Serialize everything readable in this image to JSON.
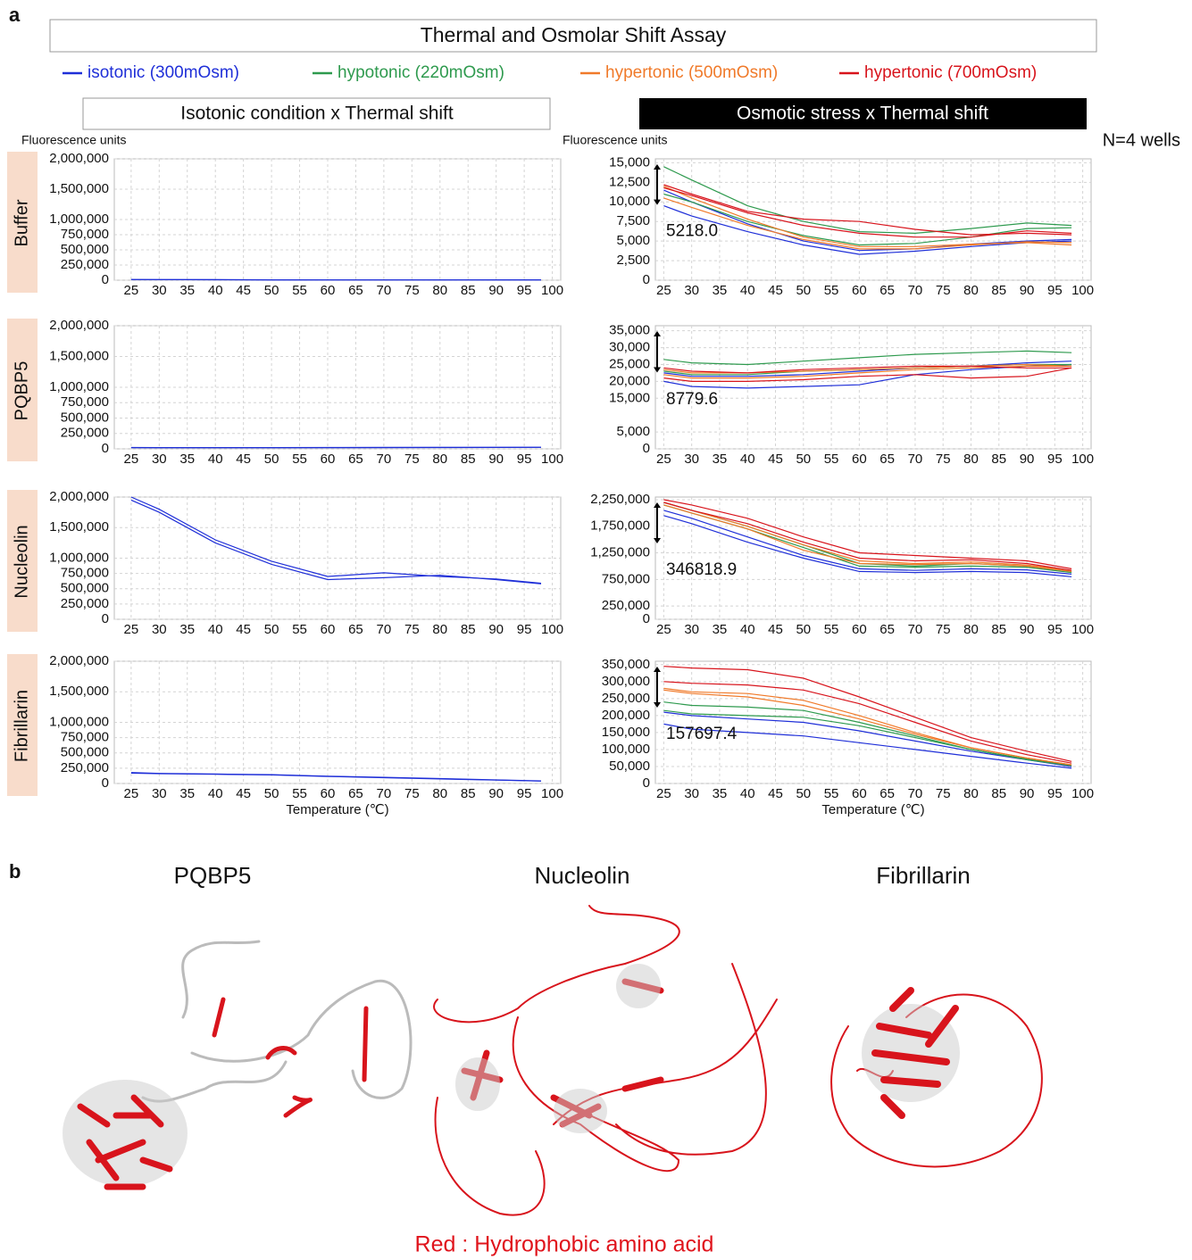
{
  "panel_a_label": "a",
  "panel_b_label": "b",
  "title": "Thermal and Osmolar Shift Assay",
  "legend": [
    {
      "name": "isotonic (300mOsm)",
      "color": "#1f2fd8"
    },
    {
      "name": "hypotonic (220mOsm)",
      "color": "#2e9a4e"
    },
    {
      "name": "hypertonic (500mOsm)",
      "color": "#f07a2a"
    },
    {
      "name": "hypertonic (700mOsm)",
      "color": "#d8141c"
    }
  ],
  "column_titles": [
    "Isotonic condition x Thermal shift",
    "Osmotic stress x Thermal shift"
  ],
  "note": "N=4 wells",
  "row_labels": [
    "Buffer",
    "PQBP5",
    "Nucleolin",
    "Fibrillarin"
  ],
  "chart_data": [
    {
      "type": "line",
      "ylabel": "Fluorescence units",
      "grid": true,
      "x": [
        25,
        30,
        40,
        50,
        60,
        70,
        80,
        90,
        98
      ],
      "xlim": [
        22,
        101.5
      ],
      "xticks": [
        25,
        30,
        35,
        40,
        45,
        50,
        55,
        60,
        65,
        70,
        75,
        80,
        85,
        90,
        95,
        100
      ],
      "ylim": [
        0,
        2000000
      ],
      "yticks": [
        0,
        {
          "value": 250000,
          "label": "250,000"
        },
        {
          "value": 500000,
          "label": "500,000"
        },
        {
          "value": 750000,
          "label": "750,000"
        },
        {
          "value": 1000000,
          "label": "1,000,000"
        },
        {
          "value": 1500000,
          "label": "1,500,000"
        },
        {
          "value": 2000000,
          "label": "2,000,000"
        }
      ],
      "series": [
        {
          "color": "#1f2fd8",
          "values": [
            11000,
            10000,
            8000,
            6000,
            4000,
            4000,
            4500,
            5000,
            5200
          ]
        },
        {
          "color": "#1f2fd8",
          "values": [
            12000,
            11000,
            9000,
            6500,
            4500,
            4500,
            5000,
            5500,
            5600
          ]
        }
      ]
    },
    {
      "type": "line",
      "ylabel": "Fluorescence units",
      "grid": true,
      "annotation": "5218.0",
      "x": [
        25,
        30,
        40,
        50,
        60,
        70,
        80,
        90,
        98
      ],
      "xlim": [
        23.5,
        101.5
      ],
      "xticks": [
        25,
        30,
        35,
        40,
        45,
        50,
        55,
        60,
        65,
        70,
        75,
        80,
        85,
        90,
        95,
        100
      ],
      "ylim": [
        0,
        15500
      ],
      "yticks": [
        0,
        {
          "value": 2500,
          "label": "2,500"
        },
        {
          "value": 5000,
          "label": "5,000"
        },
        {
          "value": 7500,
          "label": "7,500"
        },
        {
          "value": 10000,
          "label": "10,000"
        },
        {
          "value": 12500,
          "label": "12,500"
        },
        {
          "value": 15000,
          "label": "15,000"
        }
      ],
      "series": [
        {
          "color": "#1f2fd8",
          "values": [
            9500,
            8200,
            6200,
            4500,
            3300,
            3700,
            4300,
            4800,
            5000
          ]
        },
        {
          "color": "#1f2fd8",
          "values": [
            11500,
            10000,
            7200,
            5000,
            3800,
            4000,
            4600,
            5000,
            5200
          ]
        },
        {
          "color": "#2e9a4e",
          "values": [
            14500,
            12800,
            9500,
            7500,
            6200,
            6000,
            6600,
            7300,
            7000
          ]
        },
        {
          "color": "#2e9a4e",
          "values": [
            11000,
            10000,
            7500,
            5700,
            4500,
            4700,
            5500,
            6600,
            6700
          ]
        },
        {
          "color": "#f07a2a",
          "values": [
            12000,
            10500,
            7800,
            5500,
            4300,
            4300,
            4600,
            4800,
            4500
          ]
        },
        {
          "color": "#f07a2a",
          "values": [
            10500,
            9300,
            7000,
            5200,
            4000,
            4000,
            4500,
            4900,
            4800
          ]
        },
        {
          "color": "#d8141c",
          "values": [
            12200,
            11000,
            8800,
            7800,
            7500,
            6500,
            5800,
            6000,
            5800
          ]
        },
        {
          "color": "#d8141c",
          "values": [
            11800,
            10800,
            8600,
            7000,
            6000,
            5500,
            5500,
            6300,
            6000
          ]
        }
      ]
    },
    {
      "type": "line",
      "grid": true,
      "x": [
        25,
        30,
        40,
        50,
        60,
        70,
        80,
        90,
        98
      ],
      "xlim": [
        22,
        101.5
      ],
      "xticks": [
        25,
        30,
        35,
        40,
        45,
        50,
        55,
        60,
        65,
        70,
        75,
        80,
        85,
        90,
        95,
        100
      ],
      "ylim": [
        0,
        2000000
      ],
      "yticks": [
        0,
        {
          "value": 250000,
          "label": "250,000"
        },
        {
          "value": 500000,
          "label": "500,000"
        },
        {
          "value": 750000,
          "label": "750,000"
        },
        {
          "value": 1000000,
          "label": "1,000,000"
        },
        {
          "value": 1500000,
          "label": "1,500,000"
        },
        {
          "value": 2000000,
          "label": "2,000,000"
        }
      ],
      "series": [
        {
          "color": "#1f2fd8",
          "values": [
            20000,
            19000,
            18500,
            19000,
            20000,
            21000,
            22000,
            23000,
            24000
          ]
        },
        {
          "color": "#1f2fd8",
          "values": [
            22000,
            21000,
            20500,
            21000,
            22000,
            23000,
            24000,
            25000,
            25500
          ]
        }
      ]
    },
    {
      "type": "line",
      "grid": true,
      "annotation": "8779.6",
      "x": [
        25,
        30,
        40,
        50,
        60,
        70,
        80,
        90,
        98
      ],
      "xlim": [
        23.5,
        101.5
      ],
      "xticks": [
        25,
        30,
        35,
        40,
        45,
        50,
        55,
        60,
        65,
        70,
        75,
        80,
        85,
        90,
        95,
        100
      ],
      "ylim": [
        0,
        36500
      ],
      "yticks": [
        0,
        {
          "value": 5000,
          "label": "5,000"
        },
        {
          "value": 15000,
          "label": "15,000"
        },
        {
          "value": 20000,
          "label": "20,000"
        },
        {
          "value": 25000,
          "label": "25,000"
        },
        {
          "value": 30000,
          "label": "30,000"
        },
        {
          "value": 35000,
          "label": "35,000"
        }
      ],
      "series": [
        {
          "color": "#1f2fd8",
          "values": [
            20000,
            18500,
            18000,
            18500,
            19000,
            22000,
            23500,
            24500,
            25000
          ]
        },
        {
          "color": "#1f2fd8",
          "values": [
            22500,
            21500,
            21500,
            22000,
            23000,
            24000,
            24500,
            25500,
            26000
          ]
        },
        {
          "color": "#2e9a4e",
          "values": [
            26500,
            25500,
            25000,
            26000,
            27000,
            28000,
            28500,
            29000,
            28500
          ]
        },
        {
          "color": "#2e9a4e",
          "values": [
            23000,
            22000,
            22000,
            23000,
            23500,
            24000,
            24500,
            25000,
            25000
          ]
        },
        {
          "color": "#f07a2a",
          "values": [
            22000,
            21000,
            21000,
            21500,
            22500,
            23500,
            24000,
            24500,
            24500
          ]
        },
        {
          "color": "#f07a2a",
          "values": [
            23500,
            22500,
            22500,
            23000,
            23500,
            24000,
            24500,
            25000,
            24500
          ]
        },
        {
          "color": "#d8141c",
          "values": [
            21000,
            20000,
            20000,
            20500,
            21500,
            22000,
            21000,
            21500,
            24000
          ]
        },
        {
          "color": "#d8141c",
          "values": [
            24000,
            23000,
            22500,
            23500,
            24000,
            24500,
            24500,
            24000,
            24000
          ]
        }
      ]
    },
    {
      "type": "line",
      "grid": true,
      "x": [
        25,
        30,
        40,
        50,
        60,
        70,
        80,
        90,
        98
      ],
      "xlim": [
        22,
        101.5
      ],
      "xticks": [
        25,
        30,
        35,
        40,
        45,
        50,
        55,
        60,
        65,
        70,
        75,
        80,
        85,
        90,
        95,
        100
      ],
      "ylim": [
        0,
        2000000
      ],
      "yticks": [
        0,
        {
          "value": 250000,
          "label": "250,000"
        },
        {
          "value": 500000,
          "label": "500,000"
        },
        {
          "value": 750000,
          "label": "750,000"
        },
        {
          "value": 1000000,
          "label": "1,000,000"
        },
        {
          "value": 1500000,
          "label": "1,500,000"
        },
        {
          "value": 2000000,
          "label": "2,000,000"
        }
      ],
      "series": [
        {
          "color": "#1f2fd8",
          "values": [
            1950000,
            1750000,
            1250000,
            900000,
            650000,
            680000,
            720000,
            650000,
            580000
          ]
        },
        {
          "color": "#1f2fd8",
          "values": [
            2000000,
            1800000,
            1300000,
            950000,
            700000,
            760000,
            700000,
            660000,
            590000
          ]
        }
      ]
    },
    {
      "type": "line",
      "grid": true,
      "annotation": "346818.9",
      "x": [
        25,
        30,
        40,
        50,
        60,
        70,
        80,
        90,
        98
      ],
      "xlim": [
        23.5,
        101.5
      ],
      "xticks": [
        25,
        30,
        35,
        40,
        45,
        50,
        55,
        60,
        65,
        70,
        75,
        80,
        85,
        90,
        95,
        100
      ],
      "ylim": [
        0,
        2300000
      ],
      "yticks": [
        0,
        {
          "value": 250000,
          "label": "250,000"
        },
        {
          "value": 750000,
          "label": "750,000"
        },
        {
          "value": 1250000,
          "label": "1,250,000"
        },
        {
          "value": 1750000,
          "label": "1,750,000"
        },
        {
          "value": 2250000,
          "label": "2,250,000"
        }
      ],
      "series": [
        {
          "color": "#1f2fd8",
          "values": [
            1950000,
            1800000,
            1450000,
            1150000,
            900000,
            880000,
            900000,
            880000,
            800000
          ]
        },
        {
          "color": "#1f2fd8",
          "values": [
            2050000,
            1900000,
            1550000,
            1200000,
            950000,
            920000,
            950000,
            930000,
            850000
          ]
        },
        {
          "color": "#2e9a4e",
          "values": [
            2200000,
            2050000,
            1750000,
            1400000,
            1050000,
            1000000,
            1050000,
            1000000,
            900000
          ]
        },
        {
          "color": "#2e9a4e",
          "values": [
            2150000,
            2000000,
            1700000,
            1350000,
            1000000,
            980000,
            1000000,
            980000,
            880000
          ]
        },
        {
          "color": "#f07a2a",
          "values": [
            2150000,
            2000000,
            1700000,
            1300000,
            1050000,
            1030000,
            1050000,
            1000000,
            900000
          ]
        },
        {
          "color": "#f07a2a",
          "values": [
            2200000,
            2050000,
            1750000,
            1400000,
            1100000,
            1050000,
            1080000,
            1020000,
            920000
          ]
        },
        {
          "color": "#d8141c",
          "values": [
            2250000,
            2150000,
            1900000,
            1550000,
            1250000,
            1200000,
            1150000,
            1100000,
            950000
          ]
        },
        {
          "color": "#d8141c",
          "values": [
            2200000,
            2050000,
            1800000,
            1450000,
            1150000,
            1100000,
            1120000,
            1050000,
            920000
          ]
        }
      ]
    },
    {
      "type": "line",
      "grid": true,
      "xlabel": "Temperature (℃)",
      "x": [
        25,
        30,
        40,
        50,
        60,
        70,
        80,
        90,
        98
      ],
      "xlim": [
        22,
        101.5
      ],
      "xticks": [
        25,
        30,
        35,
        40,
        45,
        50,
        55,
        60,
        65,
        70,
        75,
        80,
        85,
        90,
        95,
        100
      ],
      "ylim": [
        0,
        2000000
      ],
      "yticks": [
        0,
        {
          "value": 250000,
          "label": "250,000"
        },
        {
          "value": 500000,
          "label": "500,000"
        },
        {
          "value": 750000,
          "label": "750,000"
        },
        {
          "value": 1000000,
          "label": "1,000,000"
        },
        {
          "value": 1500000,
          "label": "1,500,000"
        },
        {
          "value": 2000000,
          "label": "2,000,000"
        }
      ],
      "series": [
        {
          "color": "#1f2fd8",
          "values": [
            170000,
            160000,
            150000,
            140000,
            115000,
            95000,
            75000,
            55000,
            40000
          ]
        },
        {
          "color": "#1f2fd8",
          "values": [
            180000,
            165000,
            155000,
            145000,
            120000,
            100000,
            80000,
            58000,
            42000
          ]
        }
      ]
    },
    {
      "type": "line",
      "grid": true,
      "annotation": "157697.4",
      "xlabel": "Temperature (℃)",
      "x": [
        25,
        30,
        40,
        50,
        60,
        70,
        80,
        90,
        98
      ],
      "xlim": [
        23.5,
        101.5
      ],
      "xticks": [
        25,
        30,
        35,
        40,
        45,
        50,
        55,
        60,
        65,
        70,
        75,
        80,
        85,
        90,
        95,
        100
      ],
      "ylim": [
        0,
        360000
      ],
      "yticks": [
        0,
        {
          "value": 50000,
          "label": "50,000"
        },
        {
          "value": 100000,
          "label": "100,000"
        },
        {
          "value": 150000,
          "label": "150,000"
        },
        {
          "value": 200000,
          "label": "200,000"
        },
        {
          "value": 250000,
          "label": "250,000"
        },
        {
          "value": 300000,
          "label": "300,000"
        },
        {
          "value": 350000,
          "label": "350,000"
        }
      ],
      "series": [
        {
          "color": "#1f2fd8",
          "values": [
            175000,
            160000,
            150000,
            140000,
            120000,
            100000,
            80000,
            60000,
            45000
          ]
        },
        {
          "color": "#1f2fd8",
          "values": [
            210000,
            200000,
            190000,
            180000,
            155000,
            125000,
            95000,
            70000,
            50000
          ]
        },
        {
          "color": "#2e9a4e",
          "values": [
            240000,
            230000,
            225000,
            215000,
            180000,
            140000,
            100000,
            70000,
            52000
          ]
        },
        {
          "color": "#2e9a4e",
          "values": [
            215000,
            205000,
            200000,
            195000,
            170000,
            135000,
            100000,
            72000,
            55000
          ]
        },
        {
          "color": "#f07a2a",
          "values": [
            280000,
            270000,
            265000,
            245000,
            200000,
            150000,
            105000,
            75000,
            55000
          ]
        },
        {
          "color": "#f07a2a",
          "values": [
            275000,
            265000,
            255000,
            230000,
            190000,
            145000,
            105000,
            75000,
            55000
          ]
        },
        {
          "color": "#d8141c",
          "values": [
            345000,
            340000,
            335000,
            310000,
            255000,
            195000,
            135000,
            95000,
            65000
          ]
        },
        {
          "color": "#d8141c",
          "values": [
            300000,
            295000,
            290000,
            275000,
            235000,
            180000,
            125000,
            85000,
            60000
          ]
        }
      ]
    }
  ],
  "structures": {
    "titles": [
      "PQBP5",
      "Nucleolin",
      "Fibrillarin"
    ],
    "caption": "Red : Hydrophobic amino acid"
  }
}
